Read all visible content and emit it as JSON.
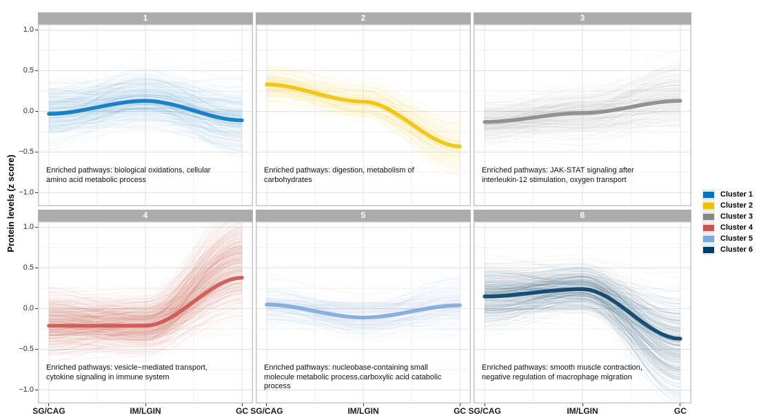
{
  "chart_data": {
    "type": "line",
    "title": "",
    "xlabel": "",
    "ylabel": "Protein levels (z score)",
    "x_categories": [
      "SG/CAG",
      "IM/LGIN",
      "GC"
    ],
    "yticks": [
      1.0,
      0.5,
      0.0,
      -0.5,
      -1.0
    ],
    "ytick_labels": [
      "1.0",
      "0.5",
      "0.0",
      "−0.5",
      "−1.0"
    ],
    "ylim": [
      -1.15,
      1.07
    ],
    "grid": true,
    "legend_position": "right",
    "facets": [
      {
        "strip_label": "1",
        "cluster": "Cluster 1",
        "color": "#0073C2",
        "trend_x": [
          "SG/CAG",
          "IM/LGIN",
          "GC"
        ],
        "trend_values": [
          -0.03,
          0.13,
          -0.11
        ],
        "spread": [
          0.17,
          0.17,
          0.22
        ],
        "n_lines": 280,
        "line_alpha": 0.045,
        "skew_gc": 0,
        "annotation": "Enriched pathways: biological oxidations, cellular\namino acid metabolic process"
      },
      {
        "strip_label": "2",
        "cluster": "Cluster 2",
        "color": "#EFC000",
        "trend_x": [
          "SG/CAG",
          "IM/LGIN",
          "GC"
        ],
        "trend_values": [
          0.33,
          0.12,
          -0.43
        ],
        "spread": [
          0.11,
          0.11,
          0.16
        ],
        "n_lines": 130,
        "line_alpha": 0.07,
        "skew_gc": 0,
        "annotation": "Enriched pathways: digestion, metabolism of\ncarbohydrates"
      },
      {
        "strip_label": "3",
        "cluster": "Cluster 3",
        "color": "#868686",
        "trend_x": [
          "SG/CAG",
          "IM/LGIN",
          "GC"
        ],
        "trend_values": [
          -0.13,
          -0.02,
          0.13
        ],
        "spread": [
          0.14,
          0.16,
          0.23
        ],
        "n_lines": 260,
        "line_alpha": 0.04,
        "skew_gc": 0.08,
        "annotation": "Enriched pathways: JAK-STAT signaling after\ninterleukin-12 stimulation, oxygen transport"
      },
      {
        "strip_label": "4",
        "cluster": "Cluster 4",
        "color": "#CD534C",
        "trend_x": [
          "SG/CAG",
          "IM/LGIN",
          "GC"
        ],
        "trend_values": [
          -0.21,
          -0.21,
          0.38
        ],
        "spread": [
          0.18,
          0.16,
          0.3
        ],
        "n_lines": 500,
        "line_alpha": 0.055,
        "skew_gc": 0.18,
        "annotation": "Enriched pathways: vesicle−mediated transport,\ncytokine signaling in immune system"
      },
      {
        "strip_label": "5",
        "cluster": "Cluster 5",
        "color": "#7AA6DC",
        "trend_x": [
          "SG/CAG",
          "IM/LGIN",
          "GC"
        ],
        "trend_values": [
          0.05,
          -0.11,
          0.04
        ],
        "spread": [
          0.13,
          0.12,
          0.18
        ],
        "n_lines": 160,
        "line_alpha": 0.05,
        "skew_gc": 0,
        "annotation": "Enriched pathways: nucleobase-containing small\nmolecule metabolic process,carboxylic acid catabolic\nprocess"
      },
      {
        "strip_label": "6",
        "cluster": "Cluster 6",
        "color": "#003C67",
        "trend_x": [
          "SG/CAG",
          "IM/LGIN",
          "GC"
        ],
        "trend_values": [
          0.15,
          0.24,
          -0.37
        ],
        "spread": [
          0.17,
          0.14,
          0.28
        ],
        "n_lines": 360,
        "line_alpha": 0.05,
        "skew_gc": -0.15,
        "annotation": "Enriched pathways: smooth muscle contraction,\nnegative regulation of macrophage migration"
      }
    ],
    "legend": {
      "entries": [
        {
          "label": "Cluster 1",
          "color": "#0073C2"
        },
        {
          "label": "Cluster 2",
          "color": "#EFC000"
        },
        {
          "label": "Cluster 3",
          "color": "#868686"
        },
        {
          "label": "Cluster 4",
          "color": "#CD534C"
        },
        {
          "label": "Cluster 5",
          "color": "#7AA6DC"
        },
        {
          "label": "Cluster 6",
          "color": "#003C67"
        }
      ]
    }
  }
}
